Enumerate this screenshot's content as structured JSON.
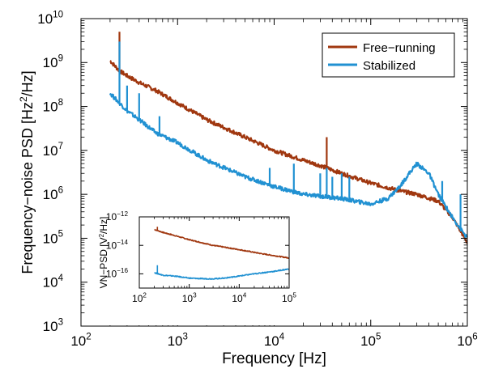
{
  "colors": {
    "free_running": "#A0370F",
    "stabilized": "#2191D2",
    "axis": "#000000"
  },
  "chart_data": [
    {
      "type": "line",
      "title": "",
      "xlabel": "Frequency [Hz]",
      "ylabel": "Frequency−noise PSD [Hz",
      "ylabel_unit_sup": "2",
      "ylabel_unit_end": "/Hz]",
      "xscale": "log",
      "yscale": "log",
      "xlim": [
        100,
        1000000
      ],
      "ylim": [
        1000,
        10000000000
      ],
      "grid": false,
      "legend": {
        "position": "top-right",
        "entries": [
          "Free−running",
          "Stabilized"
        ]
      },
      "xticks": [
        {
          "value": 100,
          "base": "10",
          "exp": "2"
        },
        {
          "value": 1000,
          "base": "10",
          "exp": "3"
        },
        {
          "value": 10000,
          "base": "10",
          "exp": "4"
        },
        {
          "value": 100000,
          "base": "10",
          "exp": "5"
        },
        {
          "value": 1000000,
          "base": "10",
          "exp": "6"
        }
      ],
      "yticks": [
        {
          "value": 1000,
          "base": "10",
          "exp": "3"
        },
        {
          "value": 10000,
          "base": "10",
          "exp": "4"
        },
        {
          "value": 100000,
          "base": "10",
          "exp": "5"
        },
        {
          "value": 1000000,
          "base": "10",
          "exp": "6"
        },
        {
          "value": 10000000,
          "base": "10",
          "exp": "7"
        },
        {
          "value": 100000000,
          "base": "10",
          "exp": "8"
        },
        {
          "value": 1000000000,
          "base": "10",
          "exp": "9"
        },
        {
          "value": 10000000000,
          "base": "10",
          "exp": "10"
        }
      ],
      "series": [
        {
          "name": "Free−running",
          "x": [
            200,
            250,
            300,
            400,
            600,
            1000,
            2000,
            5000,
            10000,
            20000,
            30000,
            50000,
            100000,
            200000,
            300000,
            500000,
            700000,
            1000000
          ],
          "y": [
            1100000000.0,
            650000000.0,
            500000000.0,
            350000000.0,
            230000000.0,
            120000000.0,
            50000000.0,
            20000000.0,
            10000000.0,
            6000000.0,
            4500000.0,
            3000000.0,
            1800000.0,
            1200000.0,
            1000000.0,
            700000.0,
            300000.0,
            80000.0
          ]
        },
        {
          "name": "Stabilized",
          "x": [
            200,
            250,
            300,
            400,
            600,
            1000,
            2000,
            5000,
            10000,
            20000,
            50000,
            100000,
            150000,
            200000,
            250000,
            300000,
            400000,
            500000,
            700000,
            1000000
          ],
          "y": [
            200000000.0,
            120000000.0,
            80000000.0,
            50000000.0,
            25000000.0,
            15000000.0,
            6000000.0,
            2500000.0,
            1500000.0,
            1000000.0,
            800000.0,
            600000.0,
            800000.0,
            1500000.0,
            3000000.0,
            5000000.0,
            3000000.0,
            1000000.0,
            300000.0,
            100000.0
          ]
        }
      ],
      "spikes": [
        {
          "series": 0,
          "x": 250,
          "peak": 5000000000.0
        },
        {
          "series": 0,
          "x": 35000,
          "peak": 20000000.0
        },
        {
          "series": 1,
          "x": 250,
          "peak": 3000000000.0
        },
        {
          "series": 1,
          "x": 300,
          "peak": 300000000.0
        },
        {
          "series": 1,
          "x": 400,
          "peak": 200000000.0
        },
        {
          "series": 1,
          "x": 650,
          "peak": 60000000.0
        },
        {
          "series": 1,
          "x": 9000,
          "peak": 4000000.0
        },
        {
          "series": 1,
          "x": 16000,
          "peak": 5000000.0
        },
        {
          "series": 1,
          "x": 30000,
          "peak": 3000000.0
        },
        {
          "series": 1,
          "x": 35000,
          "peak": 4000000.0
        },
        {
          "series": 1,
          "x": 40000,
          "peak": 2500000.0
        },
        {
          "series": 1,
          "x": 50000,
          "peak": 3000000.0
        },
        {
          "series": 1,
          "x": 60000,
          "peak": 2500000.0
        },
        {
          "series": 1,
          "x": 550000,
          "peak": 2000000.0
        },
        {
          "series": 1,
          "x": 850000,
          "peak": 1000000.0
        }
      ]
    },
    {
      "type": "line",
      "title": "",
      "xlabel": "",
      "ylabel": "VN−PSD [V",
      "ylabel_unit_sup": "2",
      "ylabel_unit_end": "/Hz]",
      "xscale": "log",
      "yscale": "log",
      "xlim": [
        100,
        100000
      ],
      "ylim": [
        1e-17,
        1e-12
      ],
      "grid": false,
      "xticks": [
        {
          "value": 100,
          "base": "10",
          "exp": "2"
        },
        {
          "value": 1000,
          "base": "10",
          "exp": "3"
        },
        {
          "value": 10000,
          "base": "10",
          "exp": "4"
        },
        {
          "value": 100000,
          "base": "10",
          "exp": "5"
        }
      ],
      "yticks": [
        {
          "value": 1e-16,
          "base": "10",
          "exp": "−16"
        },
        {
          "value": 1e-14,
          "base": "10",
          "exp": "−14"
        },
        {
          "value": 1e-12,
          "base": "10",
          "exp": "−12"
        }
      ],
      "series": [
        {
          "name": "",
          "x": [
            200,
            250,
            300,
            500,
            1000,
            3000,
            10000,
            30000,
            100000
          ],
          "y": [
            1.3e-13,
            1e-13,
            8e-14,
            5e-14,
            2.5e-14,
            1e-14,
            5e-15,
            2.5e-15,
            1.3e-15
          ]
        },
        {
          "name": "",
          "x": [
            200,
            300,
            500,
            1000,
            2000,
            3000,
            5000,
            10000,
            20000,
            50000,
            100000
          ],
          "y": [
            1.2e-16,
            8e-17,
            7e-17,
            5e-17,
            4.5e-17,
            4.5e-17,
            5e-17,
            7e-17,
            1e-16,
            1.5e-16,
            2.2e-16
          ]
        }
      ],
      "spikes": [
        {
          "series": 0,
          "x": 230,
          "peak": 2e-13
        },
        {
          "series": 1,
          "x": 230,
          "peak": 4e-16
        }
      ]
    }
  ]
}
